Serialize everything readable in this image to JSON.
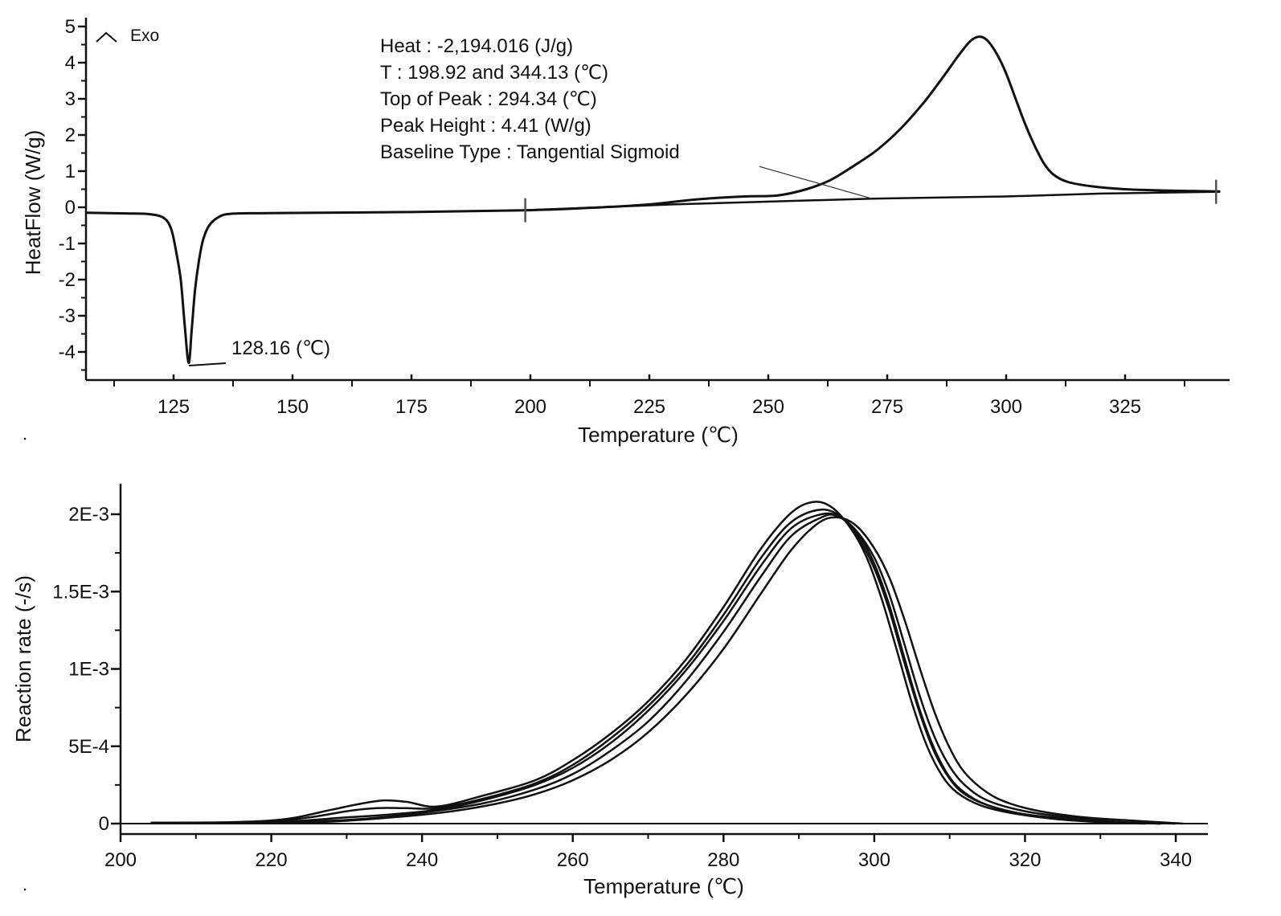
{
  "chart_data": [
    {
      "type": "line",
      "title": "",
      "xlabel": "Temperature (℃)",
      "ylabel": "HeatFlow (W/g)",
      "xlim": [
        106.6,
        347
      ],
      "ylim": [
        -4.8,
        5.2
      ],
      "xticks": [
        125,
        150,
        175,
        200,
        225,
        250,
        275,
        300,
        325
      ],
      "yticks": [
        5,
        4,
        3,
        2,
        1,
        0,
        -1,
        -2,
        -3,
        -4
      ],
      "exo_label": "Exo",
      "grid": false,
      "annotations": {
        "heat": "Heat :  -2,194.016 (J/g)",
        "t_range": "T : 198.92 and 344.13 (℃)",
        "top_of_peak": "Top of Peak :  294.34 (℃)",
        "peak_height": "Peak Height :  4.41 (W/g)",
        "baseline_type": "Baseline Type :  Tangential Sigmoid",
        "endo_peak": "128.16 (℃)"
      },
      "integration_limits": [
        198.92,
        344.13
      ],
      "series": [
        {
          "name": "heatflow",
          "points": [
            [
              106.6,
              -0.15
            ],
            [
              115,
              -0.17
            ],
            [
              120,
              -0.19
            ],
            [
              123,
              -0.3
            ],
            [
              124.5,
              -0.6
            ],
            [
              125.5,
              -1.2
            ],
            [
              126.5,
              -2.0
            ],
            [
              127.3,
              -3.2
            ],
            [
              128.16,
              -4.3
            ],
            [
              128.8,
              -3.4
            ],
            [
              129.5,
              -2.3
            ],
            [
              130.3,
              -1.5
            ],
            [
              131.2,
              -0.9
            ],
            [
              132.5,
              -0.5
            ],
            [
              134.5,
              -0.27
            ],
            [
              137,
              -0.18
            ],
            [
              145,
              -0.16
            ],
            [
              175,
              -0.13
            ],
            [
              200,
              -0.08
            ],
            [
              215,
              0.0
            ],
            [
              225,
              0.08
            ],
            [
              235,
              0.22
            ],
            [
              245,
              0.3
            ],
            [
              252,
              0.33
            ],
            [
              258,
              0.5
            ],
            [
              263,
              0.75
            ],
            [
              268,
              1.15
            ],
            [
              273,
              1.6
            ],
            [
              278,
              2.2
            ],
            [
              283,
              2.95
            ],
            [
              287,
              3.65
            ],
            [
              290,
              4.2
            ],
            [
              292.5,
              4.6
            ],
            [
              294.34,
              4.72
            ],
            [
              296,
              4.62
            ],
            [
              298,
              4.25
            ],
            [
              300,
              3.7
            ],
            [
              302,
              3.0
            ],
            [
              304,
              2.3
            ],
            [
              306,
              1.7
            ],
            [
              308,
              1.2
            ],
            [
              310,
              0.9
            ],
            [
              313,
              0.7
            ],
            [
              318,
              0.58
            ],
            [
              325,
              0.5
            ],
            [
              335,
              0.46
            ],
            [
              345,
              0.44
            ]
          ]
        },
        {
          "name": "baseline",
          "points": [
            [
              198.92,
              -0.08
            ],
            [
              230,
              0.08
            ],
            [
              271.8,
              0.24
            ],
            [
              300,
              0.3
            ],
            [
              320,
              0.38
            ],
            [
              345,
              0.43
            ]
          ]
        },
        {
          "name": "sigmoid-guide",
          "points": [
            [
              248.1,
              1.13
            ],
            [
              271.8,
              0.24
            ]
          ]
        }
      ]
    },
    {
      "type": "line",
      "title": "",
      "xlabel": "Temperature (℃)",
      "ylabel": "Reaction rate (-/s)",
      "xlim": [
        200,
        344.3
      ],
      "ylim": [
        -7e-05,
        0.0022
      ],
      "xticks": [
        200,
        220,
        240,
        260,
        280,
        300,
        320,
        340
      ],
      "yticks": [
        {
          "v": 0.002,
          "label": "2E-3"
        },
        {
          "v": 0.0015,
          "label": "1.5E-3"
        },
        {
          "v": 0.001,
          "label": "1E-3"
        },
        {
          "v": 0.0005,
          "label": "5E-4"
        },
        {
          "v": 0,
          "label": "0"
        }
      ],
      "grid": false,
      "series": [
        {
          "name": "run-1",
          "points": [
            [
              204,
              5e-06
            ],
            [
              215,
              1e-05
            ],
            [
              222,
              3e-05
            ],
            [
              228,
              9e-05
            ],
            [
              232,
              0.00013
            ],
            [
              235,
              0.00015
            ],
            [
              238,
              0.00014
            ],
            [
              242,
              0.00011
            ],
            [
              248,
              0.00018
            ],
            [
              255,
              0.00028
            ],
            [
              260,
              0.00041
            ],
            [
              265,
              0.00058
            ],
            [
              270,
              0.00079
            ],
            [
              275,
              0.00106
            ],
            [
              280,
              0.0014
            ],
            [
              285,
              0.00178
            ],
            [
              289,
              0.00201
            ],
            [
              292,
              0.00208
            ],
            [
              294.5,
              0.00204
            ],
            [
              297,
              0.0019
            ],
            [
              299,
              0.00172
            ],
            [
              301,
              0.00145
            ],
            [
              303,
              0.00112
            ],
            [
              305,
              0.00078
            ],
            [
              307,
              0.0005
            ],
            [
              309,
              0.00031
            ],
            [
              311,
              0.0002
            ],
            [
              314,
              0.00012
            ],
            [
              318,
              7e-05
            ],
            [
              324,
              3e-05
            ],
            [
              330,
              1e-05
            ],
            [
              336,
              0
            ]
          ]
        },
        {
          "name": "run-2",
          "points": [
            [
              204,
              5e-06
            ],
            [
              218,
              1e-05
            ],
            [
              225,
              4e-05
            ],
            [
              230,
              8e-05
            ],
            [
              234,
              0.0001
            ],
            [
              238,
              0.0001
            ],
            [
              242,
              0.0001
            ],
            [
              248,
              0.00016
            ],
            [
              255,
              0.00026
            ],
            [
              260,
              0.00038
            ],
            [
              265,
              0.00055
            ],
            [
              270,
              0.00076
            ],
            [
              275,
              0.00102
            ],
            [
              280,
              0.00135
            ],
            [
              285,
              0.00172
            ],
            [
              289,
              0.00195
            ],
            [
              293,
              0.00203
            ],
            [
              296,
              0.00197
            ],
            [
              298,
              0.00184
            ],
            [
              300,
              0.00165
            ],
            [
              302,
              0.00138
            ],
            [
              304,
              0.00104
            ],
            [
              306,
              0.00072
            ],
            [
              308,
              0.00046
            ],
            [
              310,
              0.00029
            ],
            [
              312,
              0.00019
            ],
            [
              315,
              0.00012
            ],
            [
              320,
              6e-05
            ],
            [
              326,
              3e-05
            ],
            [
              332,
              1e-05
            ],
            [
              338,
              0
            ]
          ]
        },
        {
          "name": "run-3",
          "points": [
            [
              204,
              5e-06
            ],
            [
              220,
              1e-05
            ],
            [
              230,
              4e-05
            ],
            [
              236,
              6e-05
            ],
            [
              242,
              9e-05
            ],
            [
              248,
              0.00015
            ],
            [
              255,
              0.00025
            ],
            [
              260,
              0.00036
            ],
            [
              265,
              0.00052
            ],
            [
              270,
              0.00073
            ],
            [
              275,
              0.00099
            ],
            [
              280,
              0.00131
            ],
            [
              285,
              0.00167
            ],
            [
              289,
              0.00191
            ],
            [
              293,
              0.002
            ],
            [
              295.5,
              0.00198
            ],
            [
              298,
              0.00186
            ],
            [
              300,
              0.00168
            ],
            [
              302,
              0.00141
            ],
            [
              304,
              0.00107
            ],
            [
              306,
              0.00074
            ],
            [
              308,
              0.00048
            ],
            [
              310,
              0.0003
            ],
            [
              312,
              0.0002
            ],
            [
              315,
              0.00012
            ],
            [
              320,
              6e-05
            ],
            [
              326,
              3e-05
            ],
            [
              332,
              1e-05
            ],
            [
              338,
              0
            ]
          ]
        },
        {
          "name": "run-4",
          "points": [
            [
              204,
              3e-06
            ],
            [
              222,
              1e-05
            ],
            [
              232,
              3e-05
            ],
            [
              240,
              7e-05
            ],
            [
              248,
              0.00013
            ],
            [
              255,
              0.00022
            ],
            [
              260,
              0.00032
            ],
            [
              265,
              0.00047
            ],
            [
              270,
              0.00066
            ],
            [
              275,
              0.00092
            ],
            [
              280,
              0.00124
            ],
            [
              285,
              0.0016
            ],
            [
              289,
              0.00186
            ],
            [
              293,
              0.00198
            ],
            [
              295,
              0.00199
            ],
            [
              297.5,
              0.0019
            ],
            [
              300,
              0.00172
            ],
            [
              302,
              0.00148
            ],
            [
              304,
              0.00116
            ],
            [
              306,
              0.00083
            ],
            [
              308,
              0.00056
            ],
            [
              310,
              0.00037
            ],
            [
              312,
              0.00025
            ],
            [
              315,
              0.00015
            ],
            [
              320,
              8e-05
            ],
            [
              326,
              4e-05
            ],
            [
              333,
              1e-05
            ],
            [
              340,
              0
            ]
          ]
        },
        {
          "name": "run-5",
          "points": [
            [
              210,
              3e-06
            ],
            [
              226,
              1e-05
            ],
            [
              236,
              4e-05
            ],
            [
              244,
              8e-05
            ],
            [
              250,
              0.00013
            ],
            [
              255,
              0.00019
            ],
            [
              260,
              0.00028
            ],
            [
              265,
              0.00041
            ],
            [
              270,
              0.00059
            ],
            [
              275,
              0.00083
            ],
            [
              280,
              0.00113
            ],
            [
              285,
              0.00149
            ],
            [
              289,
              0.00177
            ],
            [
              292.5,
              0.00194
            ],
            [
              295,
              0.00198
            ],
            [
              297.5,
              0.00193
            ],
            [
              300,
              0.00178
            ],
            [
              302,
              0.00159
            ],
            [
              304,
              0.00132
            ],
            [
              306,
              0.00101
            ],
            [
              308,
              0.00072
            ],
            [
              310,
              0.00049
            ],
            [
              312,
              0.00033
            ],
            [
              315,
              0.0002
            ],
            [
              318,
              0.00013
            ],
            [
              322,
              8e-05
            ],
            [
              328,
              4e-05
            ],
            [
              334,
              2e-05
            ],
            [
              341,
              0
            ]
          ]
        }
      ]
    }
  ]
}
